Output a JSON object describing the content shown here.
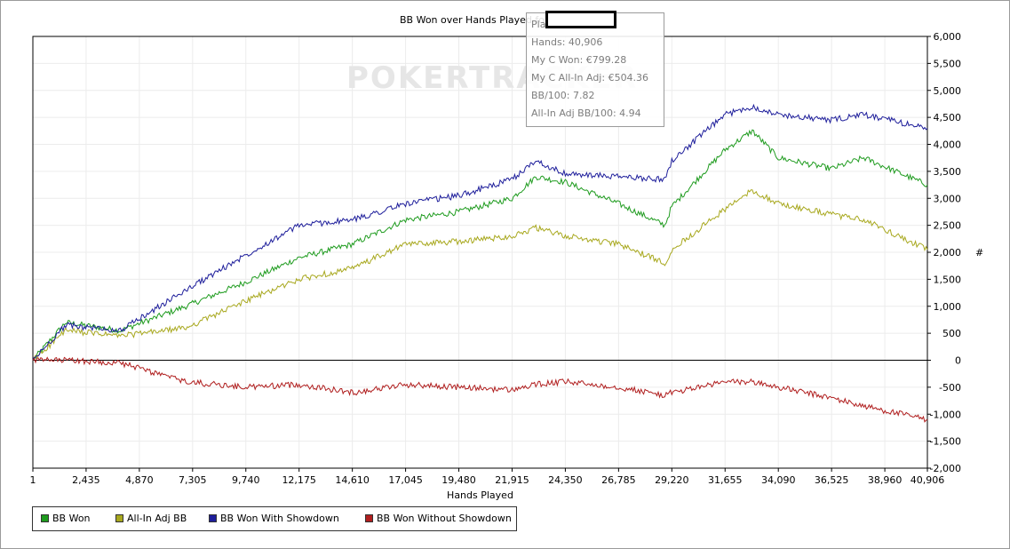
{
  "chart_data": {
    "type": "line",
    "title": "BB Won over Hands Played for",
    "xlabel": "Hands Played",
    "ylabel": "#",
    "xlim": [
      1,
      40906
    ],
    "ylim": [
      -2000,
      6000
    ],
    "x_ticks": [
      "1",
      "2,435",
      "4,870",
      "7,305",
      "9,740",
      "12,175",
      "14,610",
      "17,045",
      "19,480",
      "21,915",
      "24,350",
      "26,785",
      "29,220",
      "31,655",
      "34,090",
      "36,525",
      "38,960",
      "40,906"
    ],
    "y_ticks": [
      "6,000",
      "5,500",
      "5,000",
      "4,500",
      "4,000",
      "3,500",
      "3,000",
      "2,500",
      "2,000",
      "1,500",
      "1,000",
      "500",
      "0",
      "-500",
      "-1,000",
      "-1,500",
      "-2,000"
    ],
    "grid": true,
    "legend_position": "bottom-left",
    "x": [
      1,
      1500,
      4000,
      7000,
      9740,
      12175,
      14610,
      17045,
      19480,
      21915,
      23000,
      24350,
      26785,
      28900,
      29220,
      31655,
      32900,
      34090,
      36525,
      38000,
      40906
    ],
    "series": [
      {
        "name": "BB Won",
        "color": "#1e9b1e",
        "values": [
          0,
          700,
          550,
          1000,
          1450,
          1900,
          2150,
          2600,
          2750,
          3000,
          3400,
          3300,
          2900,
          2500,
          2850,
          3900,
          4250,
          3750,
          3550,
          3750,
          3250
        ]
      },
      {
        "name": "All-In Adj BB",
        "color": "#a8a81e",
        "values": [
          0,
          550,
          450,
          600,
          1100,
          1500,
          1700,
          2150,
          2200,
          2300,
          2450,
          2300,
          2150,
          1800,
          2050,
          2800,
          3150,
          2900,
          2700,
          2600,
          2050
        ]
      },
      {
        "name": "BB Won With Showdown",
        "color": "#1e1e9b",
        "values": [
          0,
          650,
          550,
          1300,
          1950,
          2500,
          2600,
          2900,
          3050,
          3350,
          3700,
          3450,
          3400,
          3350,
          3700,
          4550,
          4700,
          4550,
          4450,
          4550,
          4300
        ]
      },
      {
        "name": "BB Won Without Showdown",
        "color": "#b01e1e",
        "values": [
          0,
          0,
          -50,
          -400,
          -500,
          -450,
          -600,
          -450,
          -500,
          -550,
          -450,
          -400,
          -500,
          -650,
          -600,
          -400,
          -400,
          -500,
          -700,
          -850,
          -1100
        ]
      }
    ]
  },
  "tooltip": {
    "player_label": "Pla",
    "hands": "Hands: 40,906",
    "my_c_won": "My C Won: €799.28",
    "my_c_allin_adj": "My C All-In Adj: €504.36",
    "bb_per_100": "BB/100: 7.82",
    "allin_adj_bb_per_100": "All-In Adj BB/100: 4.94"
  },
  "legend": [
    {
      "label": "BB Won",
      "color": "#1e9b1e"
    },
    {
      "label": "All-In Adj BB",
      "color": "#a8a81e"
    },
    {
      "label": "BB Won With Showdown",
      "color": "#1e1e9b"
    },
    {
      "label": "BB Won Without Showdown",
      "color": "#b01e1e"
    }
  ],
  "watermark": "POKERTRACKER"
}
